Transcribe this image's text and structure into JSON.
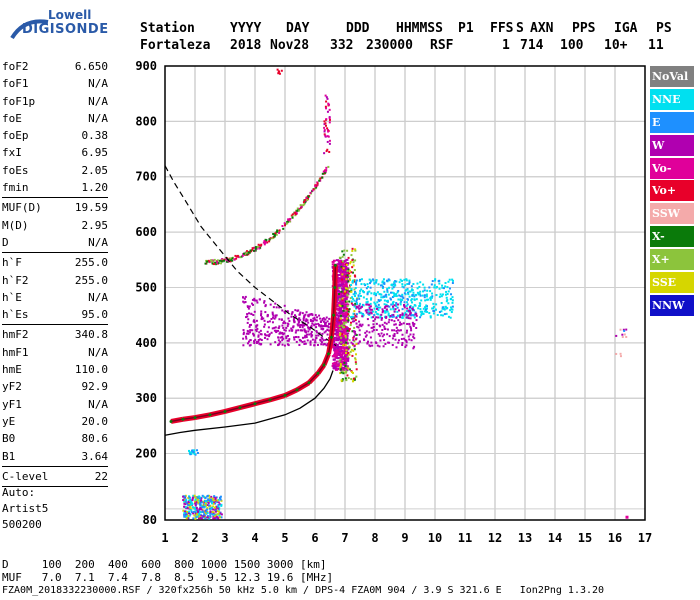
{
  "logo": {
    "line1": "Lowell",
    "line2": "DIGISONDE"
  },
  "header": {
    "labels": [
      "Station",
      "YYYY",
      "DAY",
      "DDD",
      "HHMMSS",
      "P1",
      "FFS",
      "S",
      "AXN",
      "PPS",
      "IGA",
      "PS"
    ],
    "values": [
      "Fortaleza",
      "2018",
      "Nov28",
      "332",
      "230000",
      "RSF",
      "",
      "1",
      "714",
      "100",
      "10+",
      "11"
    ]
  },
  "parameters": [
    {
      "key": "foF2",
      "value": "6.650"
    },
    {
      "key": "foF1",
      "value": "N/A"
    },
    {
      "key": "foF1p",
      "value": "N/A"
    },
    {
      "key": "foE",
      "value": "N/A"
    },
    {
      "key": "foEp",
      "value": "0.38"
    },
    {
      "key": "fxI",
      "value": "6.95"
    },
    {
      "key": "foEs",
      "value": "2.05"
    },
    {
      "key": "fmin",
      "value": "1.20"
    },
    {
      "divider": true
    },
    {
      "key": "MUF(D)",
      "value": "19.59"
    },
    {
      "key": "M(D)",
      "value": "2.95"
    },
    {
      "key": "D",
      "value": "N/A"
    },
    {
      "divider": true
    },
    {
      "key": "h`F",
      "value": "255.0"
    },
    {
      "key": "h`F2",
      "value": "255.0"
    },
    {
      "key": "h`E",
      "value": "N/A"
    },
    {
      "key": "h`Es",
      "value": "95.0"
    },
    {
      "divider": true
    },
    {
      "key": "hmF2",
      "value": "340.8"
    },
    {
      "key": "hmF1",
      "value": "N/A"
    },
    {
      "key": "hmE",
      "value": "110.0"
    },
    {
      "key": "yF2",
      "value": "92.9"
    },
    {
      "key": "yF1",
      "value": "N/A"
    },
    {
      "key": "yE",
      "value": "20.0"
    },
    {
      "key": "B0",
      "value": "80.6"
    },
    {
      "key": "B1",
      "value": "3.64"
    },
    {
      "divider": true
    },
    {
      "key": "C-level",
      "value": "22"
    },
    {
      "divider": true
    }
  ],
  "autoscaling": {
    "line1": "Auto:",
    "line2": "Artist5",
    "line3": "500200"
  },
  "legend": [
    {
      "label": "NoVal",
      "color": "#808080"
    },
    {
      "label": "NNE",
      "color": "#00e0f0"
    },
    {
      "label": "E",
      "color": "#1e90ff"
    },
    {
      "label": "W",
      "color": "#b000b0"
    },
    {
      "label": "Vo-",
      "color": "#e0009a"
    },
    {
      "label": "Vo+",
      "color": "#e8002a"
    },
    {
      "label": "SSW",
      "color": "#f4aaaa"
    },
    {
      "label": "X-",
      "color": "#0a7a0a"
    },
    {
      "label": "X+",
      "color": "#8cc43c"
    },
    {
      "label": "SSE",
      "color": "#d6d600"
    },
    {
      "label": "NNW",
      "color": "#1010c8"
    }
  ],
  "chart_data": {
    "type": "scatter",
    "xlim": [
      1,
      17
    ],
    "ylim": [
      80,
      900
    ],
    "x_ticks": [
      "1",
      "2",
      "3",
      "4",
      "5",
      "6",
      "7",
      "8",
      "9",
      "10",
      "11",
      "12",
      "13",
      "14",
      "15",
      "16",
      "17"
    ],
    "y_ticks": [
      {
        "v": 80,
        "label": "80"
      },
      {
        "v": 200,
        "label": "200"
      },
      {
        "v": 300,
        "label": "300"
      },
      {
        "v": 400,
        "label": "400"
      },
      {
        "v": 500,
        "label": "500"
      },
      {
        "v": 600,
        "label": "600"
      },
      {
        "v": 700,
        "label": "700"
      },
      {
        "v": 800,
        "label": "800"
      },
      {
        "v": 900,
        "label": "900"
      }
    ],
    "grid": true,
    "traces": {
      "f2_trace": [
        [
          1.2,
          258
        ],
        [
          1.6,
          262
        ],
        [
          2.0,
          265
        ],
        [
          2.5,
          270
        ],
        [
          3.0,
          276
        ],
        [
          3.5,
          283
        ],
        [
          4.0,
          290
        ],
        [
          4.5,
          297
        ],
        [
          5.0,
          305
        ],
        [
          5.4,
          315
        ],
        [
          5.8,
          328
        ],
        [
          6.1,
          345
        ],
        [
          6.3,
          360
        ],
        [
          6.45,
          380
        ],
        [
          6.55,
          410
        ],
        [
          6.62,
          450
        ],
        [
          6.66,
          500
        ],
        [
          6.68,
          540
        ]
      ],
      "profile_line": [
        [
          1.0,
          233
        ],
        [
          1.5,
          238
        ],
        [
          2.0,
          242
        ],
        [
          3.0,
          248
        ],
        [
          4.0,
          255
        ],
        [
          5.0,
          270
        ],
        [
          5.5,
          282
        ],
        [
          6.0,
          300
        ],
        [
          6.3,
          318
        ],
        [
          6.5,
          335
        ],
        [
          6.6,
          350
        ]
      ],
      "muf_dashed": [
        [
          1.0,
          720
        ],
        [
          1.3,
          690
        ],
        [
          1.7,
          655
        ],
        [
          2.2,
          610
        ],
        [
          2.8,
          570
        ],
        [
          3.4,
          530
        ],
        [
          4.0,
          500
        ],
        [
          4.6,
          475
        ],
        [
          5.2,
          450
        ],
        [
          5.8,
          430
        ],
        [
          6.3,
          410
        ],
        [
          6.7,
          395
        ]
      ]
    },
    "muf_table": {
      "D_label": "D",
      "D_values": [
        "100",
        "200",
        "400",
        "600",
        "800",
        "1000",
        "1500",
        "3000"
      ],
      "D_unit": "[km]",
      "MUF_label": "MUF",
      "MUF_values": [
        "7.0",
        "7.1",
        "7.4",
        "7.8",
        "8.5",
        "9.5",
        "12.3",
        "19.6"
      ],
      "MUF_unit": "[MHz]"
    }
  },
  "footer": "FZA0M_2018332230000.RSF / 320fx256h 50 kHz 5.0 km / DPS-4 FZA0M 904 / 3.9 S 321.6 E   Ion2Png 1.3.20"
}
